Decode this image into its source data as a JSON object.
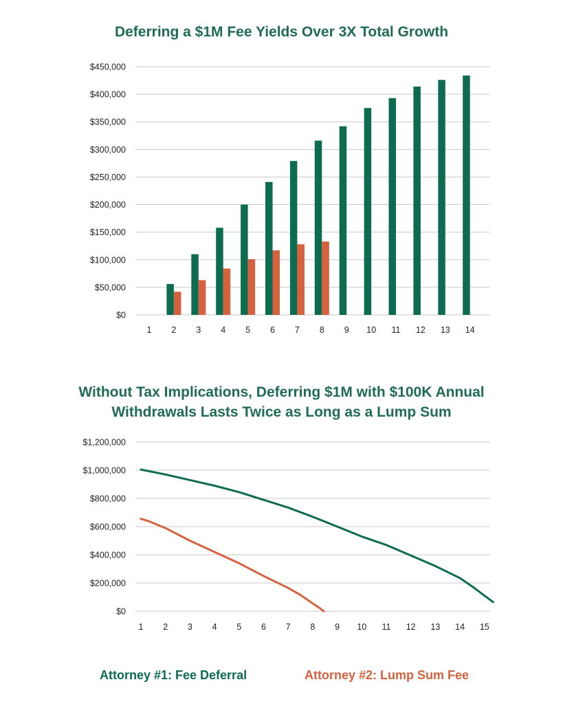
{
  "colors": {
    "deferral": "#0d6b50",
    "lump": "#d6613f",
    "title": "#1f6b55",
    "grid": "#c8c8c8"
  },
  "chart_data": [
    {
      "type": "bar",
      "title": "Deferring a $1M Fee Yields Over 3X Total Growth",
      "categories": [
        "1",
        "2",
        "3",
        "4",
        "5",
        "6",
        "7",
        "8",
        "9",
        "10",
        "11",
        "12",
        "13",
        "14"
      ],
      "series": [
        {
          "values": [
            0,
            56000,
            110000,
            158000,
            200000,
            241000,
            279000,
            316000,
            342000,
            375000,
            393000,
            414000,
            426000,
            434000
          ]
        },
        {
          "values": [
            0,
            42000,
            63000,
            84000,
            101000,
            117000,
            128000,
            133000,
            null,
            null,
            null,
            null,
            null,
            null
          ]
        }
      ],
      "ylim": [
        0,
        450000
      ],
      "yticks": [
        0,
        50000,
        100000,
        150000,
        200000,
        250000,
        300000,
        350000,
        400000,
        450000
      ],
      "ytick_labels": [
        "$0",
        "$50,000",
        "$100,000",
        "$150,000",
        "$200,000",
        "$250,000",
        "$300,000",
        "$350,000",
        "$400,000",
        "$450,000"
      ],
      "grid": true
    },
    {
      "type": "line",
      "title": "Without Tax Implications, Deferring $1M with $100K Annual Withdrawals Lasts Twice as Long as a Lump Sum",
      "x_ticks": [
        "1",
        "2",
        "3",
        "4",
        "5",
        "6",
        "7",
        "8",
        "9",
        "10",
        "11",
        "12",
        "13",
        "14",
        "15"
      ],
      "xlim": [
        1,
        15.35
      ],
      "ylim": [
        0,
        1200000
      ],
      "yticks": [
        0,
        200000,
        400000,
        600000,
        800000,
        1000000,
        1200000
      ],
      "ytick_labels": [
        "$0",
        "$200,000",
        "$400,000",
        "$600,000",
        "$800,000",
        "$1,000,000",
        "$1,200,000"
      ],
      "series": [
        {
          "name": "Attorney #1: Fee Deferral",
          "x": [
            1,
            2,
            3,
            4,
            5,
            6,
            7,
            8,
            9,
            10,
            11,
            12,
            13,
            14,
            14.5,
            15,
            15.35
          ],
          "y": [
            1005000,
            970000,
            930000,
            890000,
            845000,
            790000,
            735000,
            670000,
            600000,
            530000,
            470000,
            395000,
            320000,
            235000,
            175000,
            110000,
            65000
          ]
        },
        {
          "name": "Attorney #2: Lump Sum Fee",
          "x": [
            1,
            1.3,
            2,
            3,
            4,
            5,
            6,
            7,
            7.5,
            8,
            8.3,
            8.45
          ],
          "y": [
            655000,
            640000,
            590000,
            500000,
            420000,
            340000,
            250000,
            165000,
            115000,
            55000,
            20000,
            0
          ]
        }
      ],
      "grid": true
    }
  ],
  "legend": {
    "deferral_label": "Attorney #1: Fee Deferral",
    "lump_label": "Attorney #2: Lump Sum Fee"
  }
}
